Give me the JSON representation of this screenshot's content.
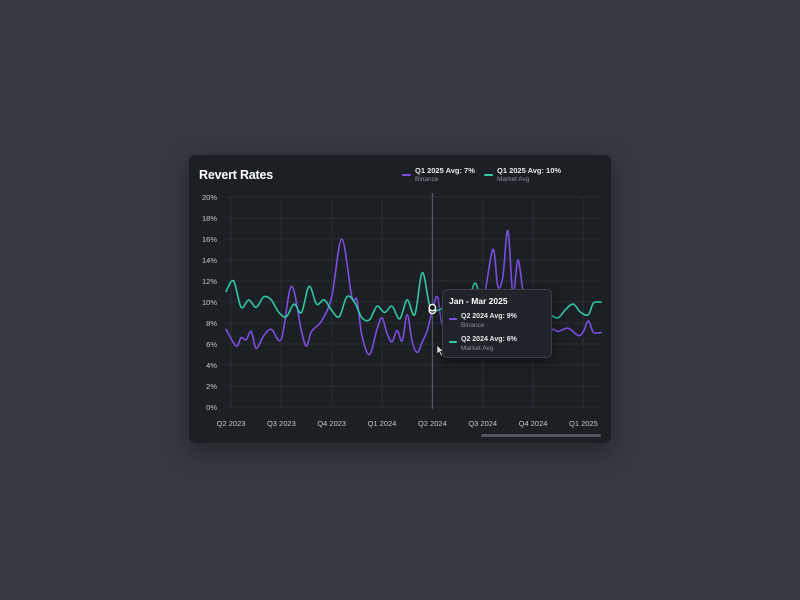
{
  "card": {
    "title": "Revert Rates",
    "legend": [
      {
        "label": "Q1 2025 Avg: 7%",
        "sub": "Binance",
        "color": "#7b4fe0"
      },
      {
        "label": "Q1 2025 Avg: 10%",
        "sub": "Market Avg",
        "color": "#2fc9a3"
      }
    ],
    "tooltip": {
      "title": "Jan - Mar 2025",
      "rows": [
        {
          "label": "Q2 2024 Avg: 9%",
          "sub": "Binance",
          "color": "#7b4fe0"
        },
        {
          "label": "Q2 2024 Avg: 6%",
          "sub": "Market Avg",
          "color": "#2fc9a3"
        }
      ]
    }
  },
  "chart_data": {
    "type": "line",
    "title": "Revert Rates",
    "ylim": [
      0,
      20
    ],
    "y_ticks": [
      "0%",
      "2%",
      "4%",
      "6%",
      "8%",
      "10%",
      "12%",
      "14%",
      "16%",
      "18%",
      "20%"
    ],
    "x_ticks": [
      "Q2 2023",
      "Q3 2023",
      "Q4 2023",
      "Q1 2024",
      "Q2 2024",
      "Q3 2024",
      "Q4 2024",
      "Q1 2025"
    ],
    "x_range": [
      -0.1,
      7.35
    ],
    "grid": true,
    "hover_x": 4.0,
    "series": [
      {
        "name": "Binance",
        "color": "#7b4fe0",
        "x": [
          -0.1,
          0.1,
          0.2,
          0.3,
          0.4,
          0.5,
          0.65,
          0.8,
          1.0,
          1.2,
          1.4,
          1.5,
          1.6,
          1.8,
          2.0,
          2.2,
          2.4,
          2.5,
          2.6,
          2.75,
          2.9,
          3.0,
          3.1,
          3.2,
          3.3,
          3.4,
          3.5,
          3.6,
          3.7,
          3.8,
          3.9,
          4.0,
          4.1,
          4.2,
          4.35,
          4.5,
          4.65,
          4.8,
          5.0,
          5.2,
          5.3,
          5.4,
          5.5,
          5.6,
          5.7,
          5.8,
          5.9,
          6.0,
          6.1,
          6.2,
          6.3,
          6.4,
          6.5,
          6.7,
          6.9,
          7.0,
          7.1,
          7.2,
          7.35
        ],
        "y": [
          7.4,
          5.8,
          6.6,
          6.4,
          7.2,
          5.6,
          6.8,
          7.4,
          6.5,
          11.5,
          7.2,
          5.8,
          7.2,
          8.2,
          10.5,
          16,
          10.5,
          10.2,
          6.8,
          5,
          7.4,
          8.5,
          7,
          6.2,
          7.3,
          6.3,
          8.8,
          6.2,
          5.2,
          6.2,
          7.3,
          9.2,
          10.5,
          7.8,
          8.5,
          8.2,
          7.2,
          8.6,
          9.8,
          15,
          11.5,
          12.4,
          16.8,
          10.8,
          14,
          11,
          8.8,
          7.5,
          8,
          7.1,
          6.9,
          7.4,
          7.2,
          7.5,
          6.8,
          7.2,
          8.2,
          7.1,
          7.1
        ]
      },
      {
        "name": "Market Avg",
        "color": "#2fc9a3",
        "x": [
          -0.1,
          0.05,
          0.2,
          0.35,
          0.5,
          0.65,
          0.8,
          0.95,
          1.1,
          1.25,
          1.4,
          1.55,
          1.7,
          1.85,
          2.0,
          2.15,
          2.3,
          2.45,
          2.6,
          2.75,
          2.9,
          3.05,
          3.2,
          3.35,
          3.5,
          3.65,
          3.8,
          3.95,
          4.1,
          4.25,
          4.4,
          4.55,
          4.7,
          4.85,
          5.0,
          5.15,
          5.3,
          5.45,
          5.6,
          5.75,
          5.9,
          6.05,
          6.2,
          6.35,
          6.5,
          6.65,
          6.8,
          6.95,
          7.1,
          7.2,
          7.35
        ],
        "y": [
          11,
          12,
          9.5,
          10.2,
          9.5,
          10.5,
          10.2,
          9,
          8.6,
          9.8,
          9,
          11.5,
          9.8,
          10.2,
          9.2,
          8.6,
          10.5,
          10,
          8.5,
          8.3,
          9.6,
          9,
          9.6,
          8.4,
          10.2,
          8.8,
          12.8,
          9.6,
          9.2,
          9.6,
          10.2,
          10.8,
          9.8,
          11.8,
          9.6,
          10.8,
          9.5,
          10.2,
          8.5,
          9.2,
          9.7,
          9.3,
          9.6,
          8.8,
          8.5,
          9.3,
          9.8,
          9.0,
          8.8,
          9.9,
          10.0
        ]
      }
    ]
  }
}
